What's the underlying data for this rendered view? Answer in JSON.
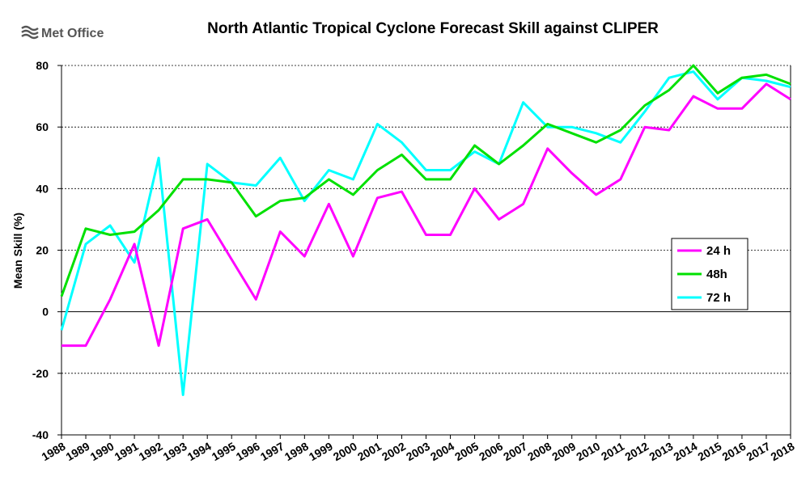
{
  "logo": {
    "text": "Met Office"
  },
  "chart_data": {
    "type": "line",
    "title": "North Atlantic Tropical Cyclone Forecast Skill against CLIPER",
    "xlabel": "",
    "ylabel": "Mean Skill (%)",
    "ylim": [
      -40,
      80
    ],
    "yticks": [
      -40,
      -20,
      0,
      20,
      40,
      60,
      80
    ],
    "grid": "horizontal dashed",
    "legend_position": "right",
    "categories": [
      "1988",
      "1989",
      "1990",
      "1991",
      "1992",
      "1993",
      "1994",
      "1995",
      "1996",
      "1997",
      "1998",
      "1999",
      "2000",
      "2001",
      "2002",
      "2003",
      "2004",
      "2005",
      "2006",
      "2007",
      "2008",
      "2009",
      "2010",
      "2011",
      "2012",
      "2013",
      "2014",
      "2015",
      "2016",
      "2017",
      "2018"
    ],
    "series": [
      {
        "name": "24 h",
        "color": "#ff00ff",
        "values": [
          -11,
          -11,
          4,
          22,
          -11,
          27,
          30,
          17,
          4,
          26,
          18,
          35,
          18,
          37,
          39,
          25,
          25,
          40,
          30,
          35,
          53,
          45,
          38,
          43,
          60,
          59,
          70,
          66,
          66,
          74,
          69
        ]
      },
      {
        "name": "48h",
        "color": "#00e000",
        "values": [
          5,
          27,
          25,
          26,
          33,
          43,
          43,
          42,
          31,
          36,
          37,
          43,
          38,
          46,
          51,
          43,
          43,
          54,
          48,
          54,
          61,
          58,
          55,
          59,
          67,
          72,
          80,
          71,
          76,
          77,
          74
        ]
      },
      {
        "name": "72 h",
        "color": "#00ffff",
        "values": [
          -6,
          22,
          28,
          16,
          50,
          -27,
          48,
          42,
          41,
          50,
          36,
          46,
          43,
          61,
          55,
          46,
          46,
          52,
          48,
          68,
          60,
          60,
          58,
          55,
          65,
          76,
          78,
          69,
          76,
          75,
          73
        ]
      }
    ]
  }
}
